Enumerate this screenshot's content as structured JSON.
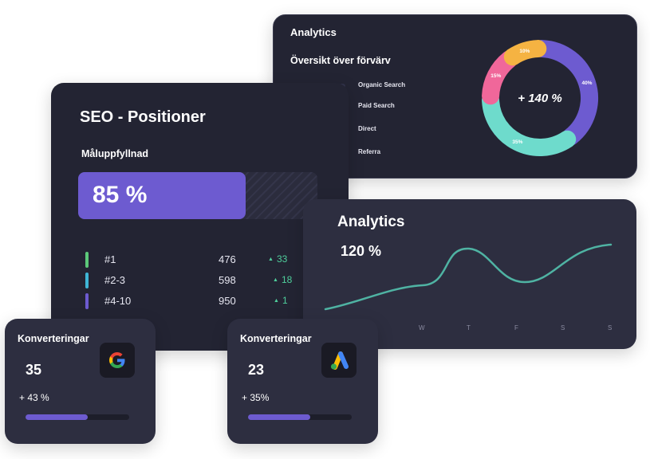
{
  "donut_card": {
    "title": "Analytics",
    "subtitle": "Översikt över förvärv",
    "center_value": "+ 140 %",
    "legend": [
      {
        "label": "Organic Search",
        "color": "#6d5bd0",
        "fill": 0.38
      },
      {
        "label": "Paid Search",
        "color": "#6edbcc",
        "fill": 0.35
      },
      {
        "label": "Direct",
        "color": "#f0679a",
        "fill": 0.12
      },
      {
        "label": "Referra",
        "color": "#f5b342",
        "fill": 0.12
      }
    ],
    "segments": [
      {
        "label": "40%",
        "value": 40,
        "color": "#6d5bd0"
      },
      {
        "label": "35%",
        "value": 35,
        "color": "#6edbcc"
      },
      {
        "label": "15%",
        "value": 15,
        "color": "#f0679a"
      },
      {
        "label": "10%",
        "value": 10,
        "color": "#f5b342"
      }
    ]
  },
  "seo_card": {
    "title": "SEO - Positioner",
    "goal_label": "Måluppfyllnad",
    "goal_value": "85 %",
    "goal_fill": 0.7,
    "rows": [
      {
        "label": "#1",
        "value": "476",
        "change": "33",
        "color": "#5cc97a"
      },
      {
        "label": "#2-3",
        "value": "598",
        "change": "18",
        "color": "#3fb6d6"
      },
      {
        "label": "#4-10",
        "value": "950",
        "change": "1",
        "color": "#6d5bd0"
      }
    ]
  },
  "line_card": {
    "title": "Analytics",
    "value": "120 %",
    "days": [
      "W",
      "T",
      "F",
      "S",
      "S"
    ],
    "line_color": "#4fb3a3"
  },
  "conversions": [
    {
      "title": "Konverteringar",
      "count": "35",
      "change": "+ 43 %",
      "progress": 0.6,
      "logo": "google-logo"
    },
    {
      "title": "Konverteringar",
      "count": "23",
      "change": "+ 35%",
      "progress": 0.6,
      "logo": "google-ads-logo"
    }
  ]
}
